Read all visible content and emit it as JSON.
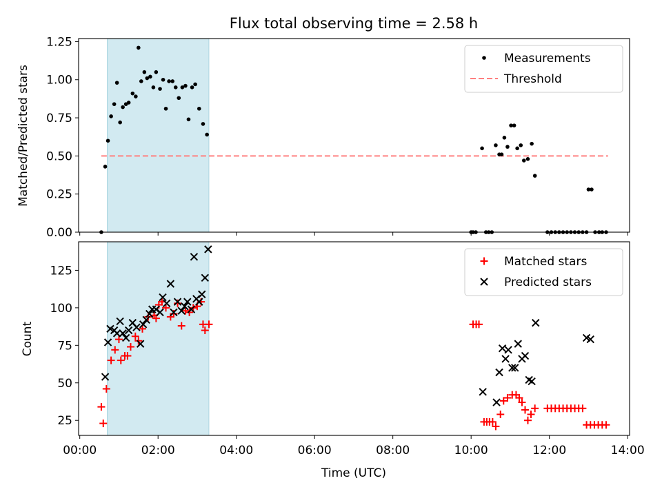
{
  "figure_title": "Flux total observing time = 2.58 h",
  "colors": {
    "measurement": "#000000",
    "threshold": "#ff8080",
    "matched": "#ff0000",
    "predicted": "#000000",
    "shade": "#add8e6"
  },
  "chart_data": [
    {
      "type": "scatter",
      "ylabel": "Matched/Predicted stars",
      "xlim": [
        -0.03,
        14.05
      ],
      "ylim": [
        0,
        1.27
      ],
      "yticks": [
        "0.00",
        "0.25",
        "0.50",
        "0.75",
        "1.00",
        "1.25"
      ],
      "ytick_values": [
        0,
        0.25,
        0.5,
        0.75,
        1.0,
        1.25
      ],
      "shaded_span": [
        0.7,
        3.3
      ],
      "legend": {
        "placement": "upper right",
        "entries": [
          {
            "label": "Measurements",
            "marker": "dot"
          },
          {
            "label": "Threshold",
            "marker": "dashed-line"
          }
        ]
      },
      "threshold": {
        "y": 0.5,
        "x_start": 0.55,
        "x_end": 13.5
      },
      "series": [
        {
          "name": "Measurements",
          "points": [
            [
              0.55,
              0.0
            ],
            [
              0.65,
              0.43
            ],
            [
              0.72,
              0.6
            ],
            [
              0.8,
              0.76
            ],
            [
              0.88,
              0.84
            ],
            [
              0.95,
              0.98
            ],
            [
              1.03,
              0.72
            ],
            [
              1.1,
              0.82
            ],
            [
              1.18,
              0.84
            ],
            [
              1.25,
              0.85
            ],
            [
              1.35,
              0.91
            ],
            [
              1.43,
              0.89
            ],
            [
              1.5,
              1.21
            ],
            [
              1.57,
              0.99
            ],
            [
              1.65,
              1.05
            ],
            [
              1.72,
              1.01
            ],
            [
              1.8,
              1.02
            ],
            [
              1.88,
              0.95
            ],
            [
              1.95,
              1.05
            ],
            [
              2.05,
              0.94
            ],
            [
              2.13,
              1.0
            ],
            [
              2.2,
              0.81
            ],
            [
              2.28,
              0.99
            ],
            [
              2.37,
              0.99
            ],
            [
              2.45,
              0.95
            ],
            [
              2.53,
              0.88
            ],
            [
              2.62,
              0.95
            ],
            [
              2.7,
              0.96
            ],
            [
              2.78,
              0.74
            ],
            [
              2.87,
              0.95
            ],
            [
              2.95,
              0.97
            ],
            [
              3.05,
              0.81
            ],
            [
              3.15,
              0.71
            ],
            [
              3.25,
              0.64
            ],
            [
              10.0,
              0.0
            ],
            [
              10.05,
              0.0
            ],
            [
              10.12,
              0.0
            ],
            [
              10.28,
              0.55
            ],
            [
              10.38,
              0.0
            ],
            [
              10.45,
              0.0
            ],
            [
              10.53,
              0.0
            ],
            [
              10.63,
              0.57
            ],
            [
              10.72,
              0.51
            ],
            [
              10.78,
              0.51
            ],
            [
              10.85,
              0.62
            ],
            [
              10.93,
              0.56
            ],
            [
              11.02,
              0.7
            ],
            [
              11.1,
              0.7
            ],
            [
              11.18,
              0.55
            ],
            [
              11.27,
              0.57
            ],
            [
              11.35,
              0.47
            ],
            [
              11.45,
              0.48
            ],
            [
              11.55,
              0.58
            ],
            [
              11.63,
              0.37
            ],
            [
              11.95,
              0.0
            ],
            [
              12.05,
              0.0
            ],
            [
              12.15,
              0.0
            ],
            [
              12.25,
              0.0
            ],
            [
              12.35,
              0.0
            ],
            [
              12.45,
              0.0
            ],
            [
              12.55,
              0.0
            ],
            [
              12.65,
              0.0
            ],
            [
              12.75,
              0.0
            ],
            [
              12.85,
              0.0
            ],
            [
              12.95,
              0.0
            ],
            [
              13.0,
              0.28
            ],
            [
              13.08,
              0.28
            ],
            [
              13.17,
              0.0
            ],
            [
              13.27,
              0.0
            ],
            [
              13.35,
              0.0
            ],
            [
              13.45,
              0.0
            ]
          ]
        }
      ]
    },
    {
      "type": "scatter",
      "xlabel": "Time (UTC)",
      "ylabel": "Count",
      "xlim": [
        -0.03,
        14.05
      ],
      "ylim": [
        15,
        144
      ],
      "xticks": [
        "00:00",
        "02:00",
        "04:00",
        "06:00",
        "08:00",
        "10:00",
        "12:00",
        "14:00"
      ],
      "xtick_values": [
        0,
        2,
        4,
        6,
        8,
        10,
        12,
        14
      ],
      "yticks": [
        "25",
        "50",
        "75",
        "100",
        "125"
      ],
      "ytick_values": [
        25,
        50,
        75,
        100,
        125
      ],
      "shaded_span": [
        0.7,
        3.3
      ],
      "legend": {
        "placement": "upper right",
        "entries": [
          {
            "label": "Matched stars",
            "marker": "plus"
          },
          {
            "label": "Predicted stars",
            "marker": "x"
          }
        ]
      },
      "series": [
        {
          "name": "Matched stars",
          "marker": "plus",
          "points": [
            [
              0.55,
              34
            ],
            [
              0.6,
              23
            ],
            [
              0.68,
              46
            ],
            [
              0.8,
              65
            ],
            [
              0.9,
              72
            ],
            [
              1.0,
              79
            ],
            [
              1.05,
              65
            ],
            [
              1.15,
              68
            ],
            [
              1.22,
              68
            ],
            [
              1.3,
              74
            ],
            [
              1.42,
              81
            ],
            [
              1.5,
              78
            ],
            [
              1.6,
              86
            ],
            [
              1.75,
              94
            ],
            [
              1.9,
              95
            ],
            [
              1.95,
              93
            ],
            [
              2.02,
              102
            ],
            [
              2.1,
              104
            ],
            [
              2.2,
              100
            ],
            [
              2.32,
              94
            ],
            [
              2.4,
              96
            ],
            [
              2.5,
              103
            ],
            [
              2.6,
              88
            ],
            [
              2.7,
              98
            ],
            [
              2.8,
              97
            ],
            [
              2.9,
              100
            ],
            [
              3.0,
              101
            ],
            [
              3.1,
              104
            ],
            [
              3.15,
              89
            ],
            [
              3.2,
              85
            ],
            [
              3.3,
              89
            ],
            [
              10.05,
              89
            ],
            [
              10.13,
              89
            ],
            [
              10.2,
              89
            ],
            [
              10.33,
              24
            ],
            [
              10.4,
              24
            ],
            [
              10.47,
              24
            ],
            [
              10.55,
              24
            ],
            [
              10.63,
              21
            ],
            [
              10.75,
              29
            ],
            [
              10.83,
              38
            ],
            [
              10.93,
              40
            ],
            [
              11.05,
              42
            ],
            [
              11.15,
              42
            ],
            [
              11.23,
              40
            ],
            [
              11.3,
              37
            ],
            [
              11.38,
              32
            ],
            [
              11.45,
              25
            ],
            [
              11.53,
              29
            ],
            [
              11.63,
              33
            ],
            [
              11.95,
              33
            ],
            [
              12.05,
              33
            ],
            [
              12.15,
              33
            ],
            [
              12.25,
              33
            ],
            [
              12.35,
              33
            ],
            [
              12.45,
              33
            ],
            [
              12.55,
              33
            ],
            [
              12.65,
              33
            ],
            [
              12.75,
              33
            ],
            [
              12.85,
              33
            ],
            [
              12.95,
              22
            ],
            [
              13.05,
              22
            ],
            [
              13.15,
              22
            ],
            [
              13.25,
              22
            ],
            [
              13.35,
              22
            ],
            [
              13.45,
              22
            ]
          ]
        },
        {
          "name": "Predicted stars",
          "marker": "x",
          "points": [
            [
              0.65,
              54
            ],
            [
              0.72,
              77
            ],
            [
              0.78,
              86
            ],
            [
              0.88,
              85
            ],
            [
              0.95,
              83
            ],
            [
              1.03,
              91
            ],
            [
              1.1,
              83
            ],
            [
              1.18,
              80
            ],
            [
              1.25,
              85
            ],
            [
              1.35,
              90
            ],
            [
              1.45,
              87
            ],
            [
              1.55,
              76
            ],
            [
              1.62,
              89
            ],
            [
              1.7,
              92
            ],
            [
              1.78,
              96
            ],
            [
              1.85,
              99
            ],
            [
              1.95,
              99
            ],
            [
              2.05,
              97
            ],
            [
              2.12,
              107
            ],
            [
              2.22,
              103
            ],
            [
              2.32,
              116
            ],
            [
              2.4,
              97
            ],
            [
              2.5,
              104
            ],
            [
              2.6,
              98
            ],
            [
              2.68,
              101
            ],
            [
              2.75,
              104
            ],
            [
              2.85,
              99
            ],
            [
              2.92,
              134
            ],
            [
              2.98,
              106
            ],
            [
              3.05,
              104
            ],
            [
              3.12,
              109
            ],
            [
              3.2,
              120
            ],
            [
              3.28,
              139
            ],
            [
              10.3,
              44
            ],
            [
              10.65,
              37
            ],
            [
              10.72,
              57
            ],
            [
              10.8,
              73
            ],
            [
              10.88,
              66
            ],
            [
              10.95,
              72
            ],
            [
              11.05,
              60
            ],
            [
              11.12,
              60
            ],
            [
              11.2,
              76
            ],
            [
              11.3,
              66
            ],
            [
              11.38,
              68
            ],
            [
              11.48,
              52
            ],
            [
              11.55,
              51
            ],
            [
              11.65,
              90
            ],
            [
              12.95,
              80
            ],
            [
              13.05,
              79
            ]
          ]
        }
      ]
    }
  ]
}
